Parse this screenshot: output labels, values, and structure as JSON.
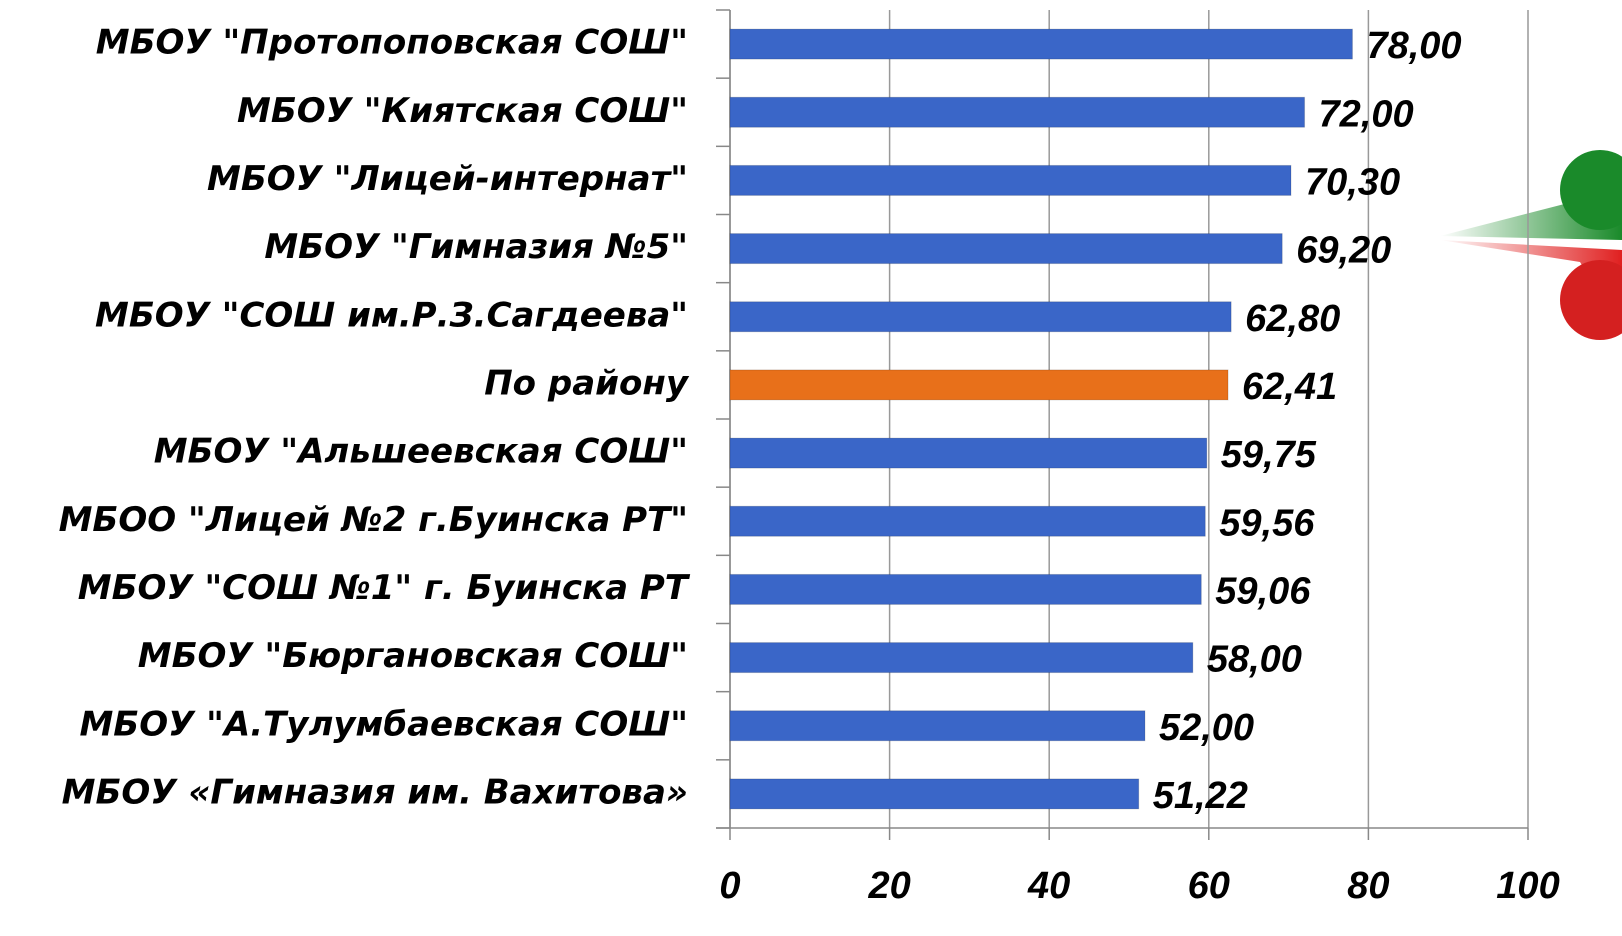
{
  "chart_data": {
    "type": "bar",
    "orientation": "horizontal",
    "categories": [
      "МБОУ \"Протопоповская СОШ\"",
      "МБОУ \"Киятская СОШ\"",
      "МБОУ \"Лицей-интернат\"",
      "МБОУ \"Гимназия №5\"",
      "МБОУ \"СОШ им.Р.З.Сагдеева\"",
      "По району",
      "МБОУ \"Альшеевская СОШ\"",
      "МБОО \"Лицей №2 г.Буинска РТ\"",
      "МБОУ \"СОШ №1\" г. Буинска РТ",
      "МБОУ \"Бюргановская СОШ\"",
      "МБОУ \"А.Тулумбаевская СОШ\"",
      "МБОУ «Гимназия им. Вахитова»"
    ],
    "values": [
      78,
      72,
      70.3,
      69.2,
      62.8,
      62.41,
      59.75,
      59.56,
      59.06,
      58,
      52,
      51.22
    ],
    "value_labels": [
      "78,00",
      "72,00",
      "70,30",
      "69,20",
      "62,80",
      "62,41",
      "59,75",
      "59,56",
      "59,06",
      "58,00",
      "52,00",
      "51,22"
    ],
    "colors": [
      "#3a66c8",
      "#3a66c8",
      "#3a66c8",
      "#3a66c8",
      "#3a66c8",
      "#e8701a",
      "#3a66c8",
      "#3a66c8",
      "#3a66c8",
      "#3a66c8",
      "#3a66c8",
      "#3a66c8"
    ],
    "xlim": [
      0,
      100
    ],
    "xticks": [
      0,
      20,
      40,
      60,
      80,
      100
    ],
    "grid": true
  }
}
